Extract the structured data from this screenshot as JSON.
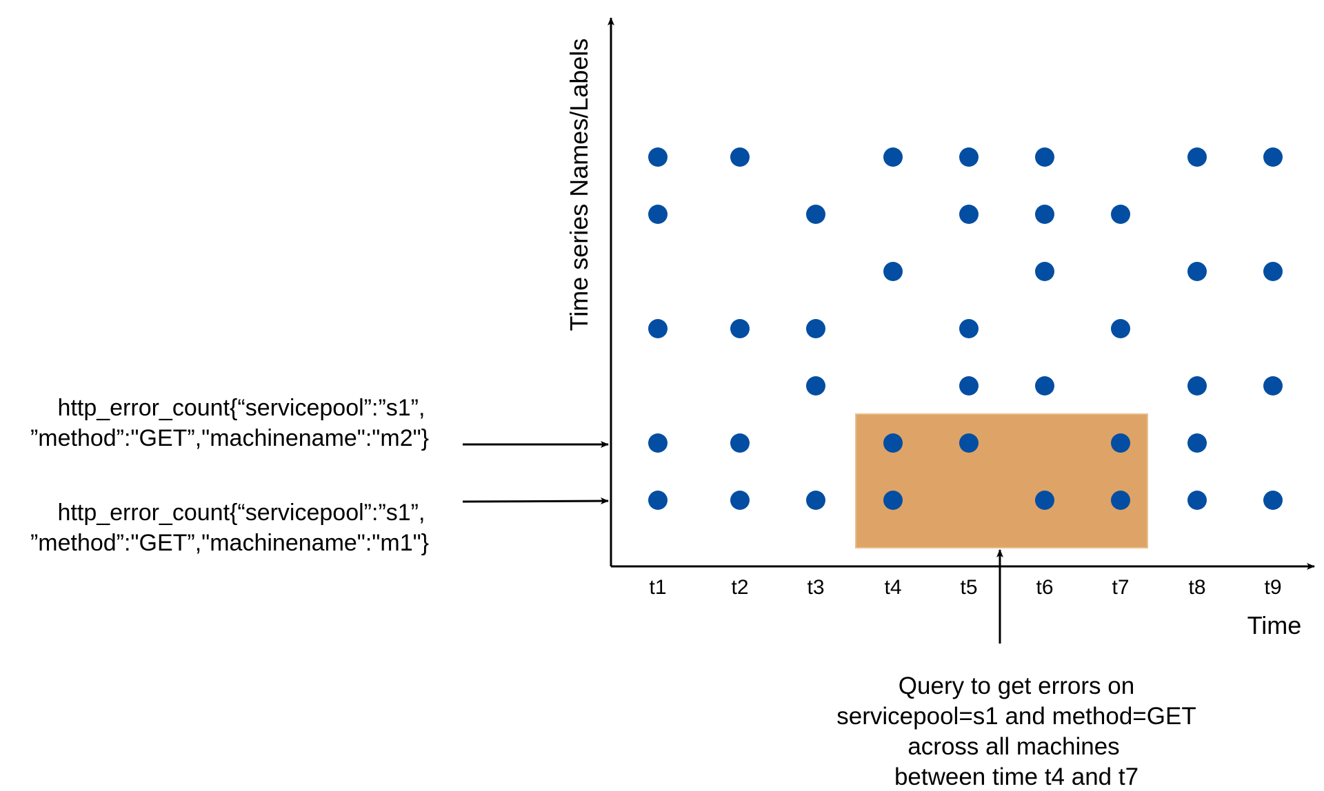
{
  "axes": {
    "y_title": "Time series Names/Labels",
    "x_title": "Time",
    "x_ticks": [
      "t1",
      "t2",
      "t3",
      "t4",
      "t5",
      "t6",
      "t7",
      "t8",
      "t9"
    ]
  },
  "series_labels": [
    {
      "line1": "http_error_count{“servicepool”:”s1”,",
      "line2": "”method”:\"GET”,\"machinename\":\"m2\"}",
      "row": 6
    },
    {
      "line1": "http_error_count{“servicepool”:”s1”,",
      "line2": "”method”:\"GET”,\"machinename\":\"m1\"}",
      "row": 7
    }
  ],
  "query_annotation": {
    "lines": [
      "Query to get errors on",
      "servicepool=s1 and method=GET",
      "across all machines",
      "between time t4 and t7"
    ]
  },
  "highlight": {
    "from_tick": "t4",
    "to_tick": "t7",
    "color": "#DEA366"
  },
  "colors": {
    "dot": "#034EA2",
    "axis": "#000000"
  },
  "samples": [
    {
      "row": 1,
      "ticks": [
        "t1",
        "t2",
        "t4",
        "t5",
        "t6",
        "t8",
        "t9"
      ]
    },
    {
      "row": 2,
      "ticks": [
        "t1",
        "t3",
        "t5",
        "t6",
        "t7"
      ]
    },
    {
      "row": 3,
      "ticks": [
        "t4",
        "t6",
        "t8",
        "t9"
      ]
    },
    {
      "row": 4,
      "ticks": [
        "t1",
        "t2",
        "t3",
        "t5",
        "t7"
      ]
    },
    {
      "row": 5,
      "ticks": [
        "t3",
        "t5",
        "t6",
        "t8",
        "t9"
      ]
    },
    {
      "row": 6,
      "ticks": [
        "t1",
        "t2",
        "t4",
        "t5",
        "t7",
        "t8"
      ]
    },
    {
      "row": 7,
      "ticks": [
        "t1",
        "t2",
        "t3",
        "t4",
        "t6",
        "t7",
        "t8",
        "t9"
      ]
    }
  ]
}
